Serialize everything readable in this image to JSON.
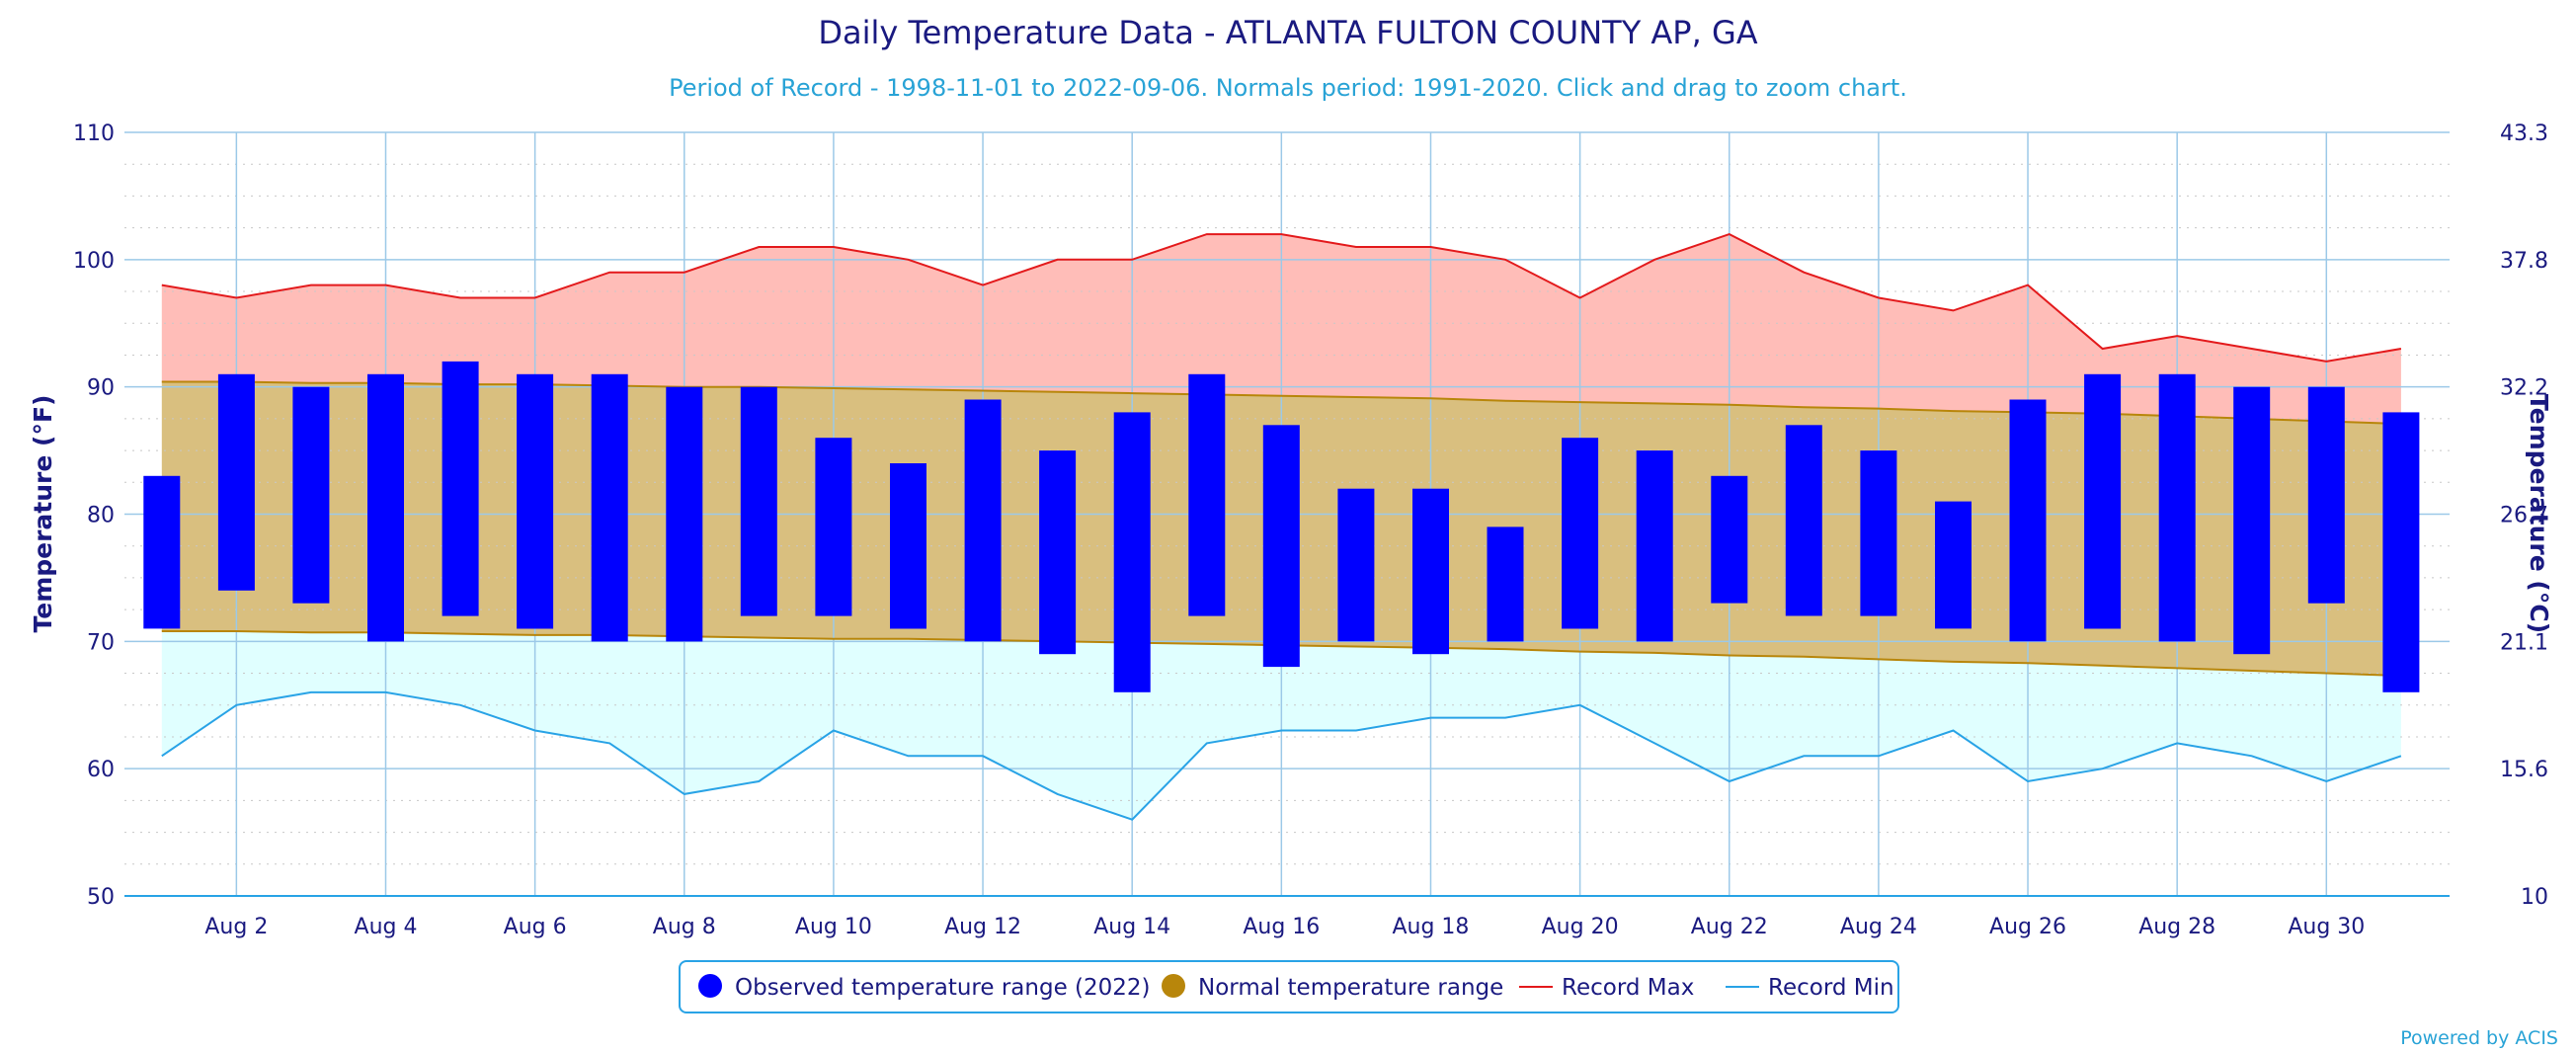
{
  "chart_data": {
    "type": "bar",
    "title": "Daily Temperature Data - ATLANTA FULTON COUNTY AP, GA",
    "subtitle": "Period of Record - 1998-11-01 to 2022-09-06. Normals period: 1991-2020. Click and drag to zoom chart.",
    "ylabel": "Temperature (°F)",
    "ylabel_right": "Temperature (°C)",
    "ylim": [
      50,
      110
    ],
    "yticks": [
      50,
      60,
      70,
      80,
      90,
      100,
      110
    ],
    "yticks_right": [
      "10",
      "15.6",
      "21.1",
      "26.7",
      "32.2",
      "37.8",
      "43.3"
    ],
    "days": [
      1,
      2,
      3,
      4,
      5,
      6,
      7,
      8,
      9,
      10,
      11,
      12,
      13,
      14,
      15,
      16,
      17,
      18,
      19,
      20,
      21,
      22,
      23,
      24,
      25,
      26,
      27,
      28,
      29,
      30,
      31
    ],
    "xtick_labels": [
      {
        "day": 2,
        "label": "Aug 2"
      },
      {
        "day": 4,
        "label": "Aug 4"
      },
      {
        "day": 6,
        "label": "Aug 6"
      },
      {
        "day": 8,
        "label": "Aug 8"
      },
      {
        "day": 10,
        "label": "Aug 10"
      },
      {
        "day": 12,
        "label": "Aug 12"
      },
      {
        "day": 14,
        "label": "Aug 14"
      },
      {
        "day": 16,
        "label": "Aug 16"
      },
      {
        "day": 18,
        "label": "Aug 18"
      },
      {
        "day": 20,
        "label": "Aug 20"
      },
      {
        "day": 22,
        "label": "Aug 22"
      },
      {
        "day": 24,
        "label": "Aug 24"
      },
      {
        "day": 26,
        "label": "Aug 26"
      },
      {
        "day": 28,
        "label": "Aug 28"
      },
      {
        "day": 30,
        "label": "Aug 30"
      }
    ],
    "series": [
      {
        "name": "Observed temperature range (2022)",
        "color": "#0000ff",
        "high": [
          83,
          91,
          90,
          91,
          92,
          91,
          91,
          90,
          90,
          86,
          84,
          89,
          85,
          88,
          91,
          87,
          82,
          82,
          79,
          86,
          85,
          83,
          87,
          85,
          81,
          89,
          91,
          91,
          90,
          90,
          88
        ],
        "low": [
          71,
          74,
          73,
          70,
          72,
          71,
          70,
          70,
          72,
          72,
          71,
          70,
          69,
          66,
          72,
          68,
          70,
          69,
          70,
          71,
          70,
          73,
          72,
          72,
          71,
          70,
          71,
          70,
          69,
          73,
          66
        ]
      },
      {
        "name": "Normal temperature range",
        "color": "#b8860b",
        "fill": "#d9bf7f",
        "high": [
          90.4,
          90.4,
          90.3,
          90.3,
          90.2,
          90.2,
          90.1,
          90.0,
          90.0,
          89.9,
          89.8,
          89.7,
          89.6,
          89.5,
          89.4,
          89.3,
          89.2,
          89.1,
          88.9,
          88.8,
          88.7,
          88.6,
          88.4,
          88.3,
          88.1,
          88.0,
          87.9,
          87.7,
          87.5,
          87.3,
          87.1
        ],
        "low": [
          70.8,
          70.8,
          70.7,
          70.7,
          70.6,
          70.5,
          70.5,
          70.4,
          70.3,
          70.2,
          70.2,
          70.1,
          70.0,
          69.9,
          69.8,
          69.7,
          69.6,
          69.5,
          69.4,
          69.2,
          69.1,
          68.9,
          68.8,
          68.6,
          68.4,
          68.3,
          68.1,
          67.9,
          67.7,
          67.5,
          67.3
        ]
      },
      {
        "name": "Record Max",
        "color": "#e31a1c",
        "fill": "#ffbdb8",
        "values": [
          98,
          97,
          98,
          98,
          97,
          97,
          99,
          99,
          101,
          101,
          100,
          98,
          100,
          100,
          102,
          102,
          101,
          101,
          100,
          97,
          100,
          102,
          99,
          97,
          96,
          98,
          93,
          94,
          93,
          92,
          93
        ]
      },
      {
        "name": "Record Min",
        "color": "#29a3e6",
        "fill": "#e0ffff",
        "values": [
          61,
          65,
          66,
          66,
          65,
          63,
          62,
          58,
          59,
          63,
          61,
          61,
          58,
          56,
          62,
          63,
          63,
          64,
          64,
          65,
          62,
          59,
          61,
          61,
          63,
          59,
          60,
          62,
          61,
          59,
          61
        ]
      }
    ],
    "legend_position": "bottom-center",
    "grid": true
  },
  "credit": "Powered by ACIS"
}
